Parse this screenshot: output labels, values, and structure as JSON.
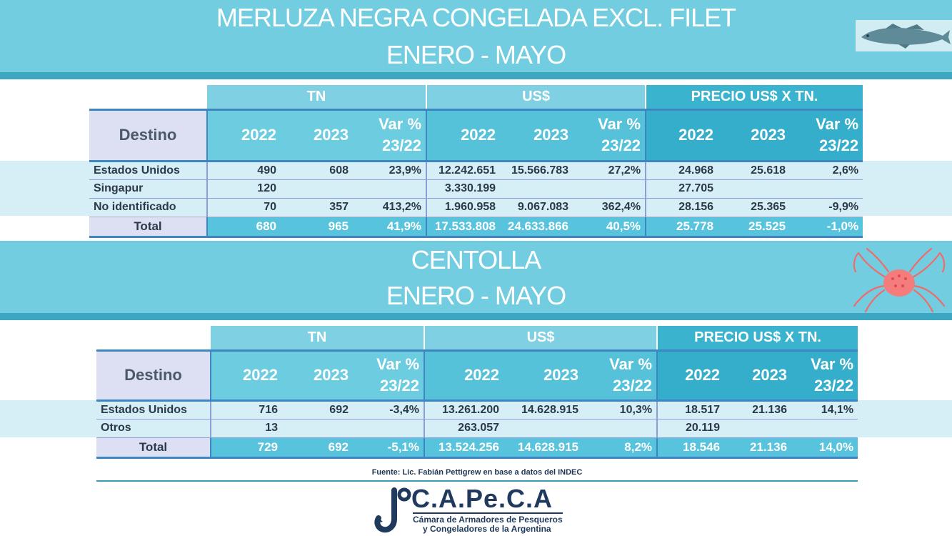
{
  "section1": {
    "title_line1": "MERLUZA NEGRA CONGELADA EXCL. FILET",
    "title_line2": "ENERO - MAYO",
    "icon": "fish-icon",
    "headers": {
      "group_tn": "TN",
      "group_usd": "US$",
      "group_price": "PRECIO US$ X TN.",
      "destino": "Destino",
      "y2022": "2022",
      "y2023": "2023",
      "var1": "Var %",
      "var2": "23/22"
    },
    "rows": [
      [
        "Estados Unidos",
        "490",
        "608",
        "23,9%",
        "12.242.651",
        "15.566.783",
        "27,2%",
        "24.968",
        "25.618",
        "2,6%"
      ],
      [
        "Singapur",
        "120",
        "",
        "",
        "3.330.199",
        "",
        "",
        "27.705",
        "",
        ""
      ],
      [
        "No identificado",
        "70",
        "357",
        "413,2%",
        "1.960.958",
        "9.067.083",
        "362,4%",
        "28.156",
        "25.365",
        "-9,9%"
      ]
    ],
    "total": [
      "Total",
      "680",
      "965",
      "41,9%",
      "17.533.808",
      "24.633.866",
      "40,5%",
      "25.778",
      "25.525",
      "-1,0%"
    ]
  },
  "section2": {
    "title_line1": "CENTOLLA",
    "title_line2": "ENERO - MAYO",
    "icon": "crab-icon",
    "headers": {
      "group_tn": "TN",
      "group_usd": "US$",
      "group_price": "PRECIO US$ X TN.",
      "destino": "Destino",
      "y2022": "2022",
      "y2023": "2023",
      "var1": "Var %",
      "var2": "23/22"
    },
    "rows": [
      [
        "Estados Unidos",
        "716",
        "692",
        "-3,4%",
        "13.261.200",
        "14.628.915",
        "10,3%",
        "18.517",
        "21.136",
        "14,1%"
      ],
      [
        "Otros",
        "13",
        "",
        "",
        "263.057",
        "",
        "",
        "20.119",
        "",
        ""
      ]
    ],
    "total": [
      "Total",
      "729",
      "692",
      "-5,1%",
      "13.524.256",
      "14.628.915",
      "8,2%",
      "18.546",
      "21.136",
      "14,0%"
    ]
  },
  "footer": {
    "source": "Fuente: Lic. Fabián Pettigrew en base a datos del INDEC",
    "logo_name": "C.A.Pe.C.A",
    "logo_sub1": "Cámara de Armadores de Pesqueros",
    "logo_sub2": "y Congeladores de la Argentina",
    "logo_icon": "hook-icon"
  }
}
